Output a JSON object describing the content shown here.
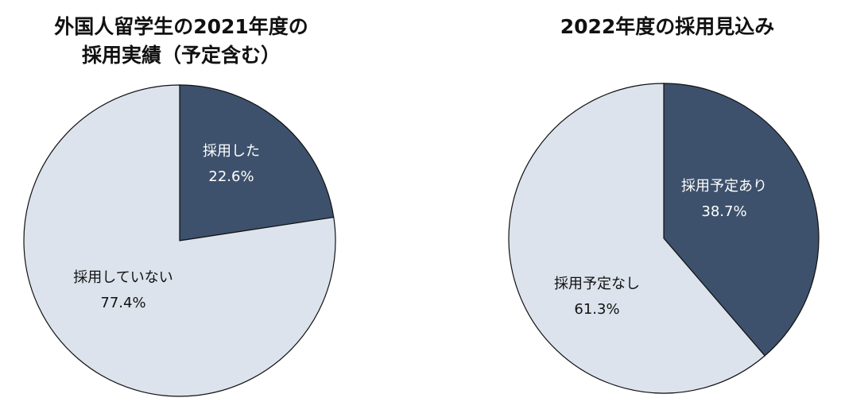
{
  "charts": [
    {
      "title_lines": [
        "外国人留学生の2021年度の",
        "採用実績（予定含む）"
      ]
    },
    {
      "title_lines": [
        "2022年度の採用見込み"
      ]
    }
  ],
  "chart_data": [
    {
      "type": "pie",
      "title": "外国人留学生の2021年度の採用実績（予定含む）",
      "start": "12 o'clock, clockwise",
      "slices": [
        {
          "label": "採用した",
          "value": 22.6,
          "value_label": "22.6%",
          "color": "#3d516c"
        },
        {
          "label": "採用していない",
          "value": 77.4,
          "value_label": "77.4%",
          "color": "#dce3ec"
        }
      ]
    },
    {
      "type": "pie",
      "title": "2022年度の採用見込み",
      "start": "12 o'clock, clockwise",
      "slices": [
        {
          "label": "採用予定あり",
          "value": 38.7,
          "value_label": "38.7%",
          "color": "#3d516c"
        },
        {
          "label": "採用予定なし",
          "value": 61.3,
          "value_label": "61.3%",
          "color": "#dce3ec"
        }
      ]
    }
  ]
}
